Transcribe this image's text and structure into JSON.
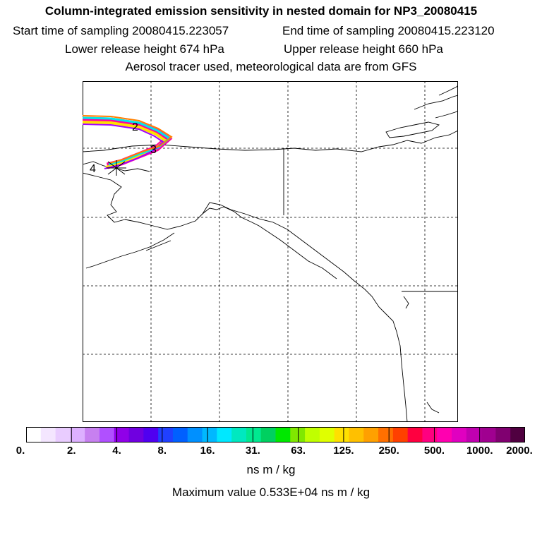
{
  "header": {
    "title": "Column-integrated emission sensitivity in nested domain for NP3_20080415",
    "start_time": "Start time of sampling 20080415.223057",
    "end_time": "End time of sampling 20080415.223120",
    "lower_release": "Lower release height  674 hPa",
    "upper_release": "Upper release height  660 hPa",
    "tracer_note": "Aerosol tracer used, meteorological data are from GFS"
  },
  "map": {
    "trajectory_labels": [
      "2",
      "3",
      "4"
    ],
    "plume_colors": [
      "#ff00a0",
      "#ffe000",
      "#00e8e8",
      "#a000ff",
      "#ff8000"
    ]
  },
  "colorbar": {
    "segment_colors": [
      "#ffffff",
      "#f4e6ff",
      "#e9ccff",
      "#ddb0ff",
      "#c780f0",
      "#b050ff",
      "#9000e8",
      "#7000e0",
      "#5000f0",
      "#2040ff",
      "#0060ff",
      "#0090ff",
      "#00b8ff",
      "#00e8ff",
      "#00e8c0",
      "#00e890",
      "#00d060",
      "#00e800",
      "#80e800",
      "#c0ff00",
      "#e0ff00",
      "#ffe000",
      "#ffc000",
      "#ffa000",
      "#ff7000",
      "#ff4000",
      "#ff0040",
      "#ff0080",
      "#ff00b0",
      "#e000c0",
      "#c000b0",
      "#a00090",
      "#800070",
      "#500040"
    ],
    "tick_labels": [
      "0.",
      "2.",
      "4.",
      "8.",
      "16.",
      "31.",
      "63.",
      "125.",
      "250.",
      "500.",
      "1000.",
      "2000."
    ],
    "units": "ns m / kg"
  },
  "footer": {
    "max_value": "Maximum value  0.533E+04 ns m / kg"
  }
}
